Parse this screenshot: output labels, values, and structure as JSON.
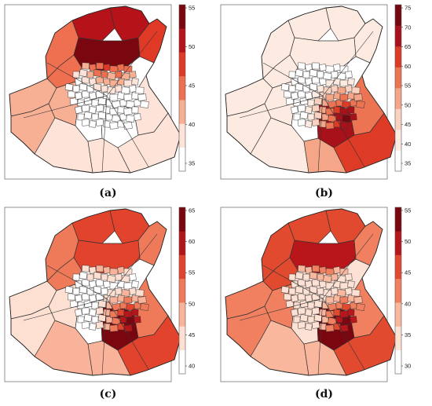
{
  "panels": [
    {
      "id": "a",
      "caption": "(a)",
      "ticks": [
        "55",
        "50",
        "45",
        "40",
        "35"
      ],
      "palette": [
        "#ffffff",
        "#fde3d8",
        "#f8b095",
        "#ee7050",
        "#e03a27",
        "#b6121a",
        "#7a0710"
      ],
      "hotspot": "north"
    },
    {
      "id": "b",
      "caption": "(b)",
      "ticks": [
        "75",
        "70",
        "65",
        "60",
        "55",
        "50",
        "45",
        "40",
        "35"
      ],
      "palette": [
        "#ffffff",
        "#fdebe2",
        "#fbd1bf",
        "#f5a588",
        "#ec7452",
        "#dd3b26",
        "#a8111a",
        "#750710"
      ],
      "hotspot": "southeast"
    },
    {
      "id": "c",
      "caption": "(c)",
      "ticks": [
        "65",
        "60",
        "55",
        "50",
        "45",
        "40"
      ],
      "palette": [
        "#ffffff",
        "#fde0d2",
        "#f8b39a",
        "#ef7a5a",
        "#e2432c",
        "#b31519",
        "#7a0710"
      ],
      "hotspot": "both"
    },
    {
      "id": "d",
      "caption": "(d)",
      "ticks": [
        "55",
        "50",
        "45",
        "40",
        "35",
        "30"
      ],
      "palette": [
        "#ffffff",
        "#fde1d4",
        "#f9b79e",
        "#f0805f",
        "#e24a30",
        "#b8161a",
        "#7a0710"
      ],
      "hotspot": "both-strong"
    }
  ]
}
